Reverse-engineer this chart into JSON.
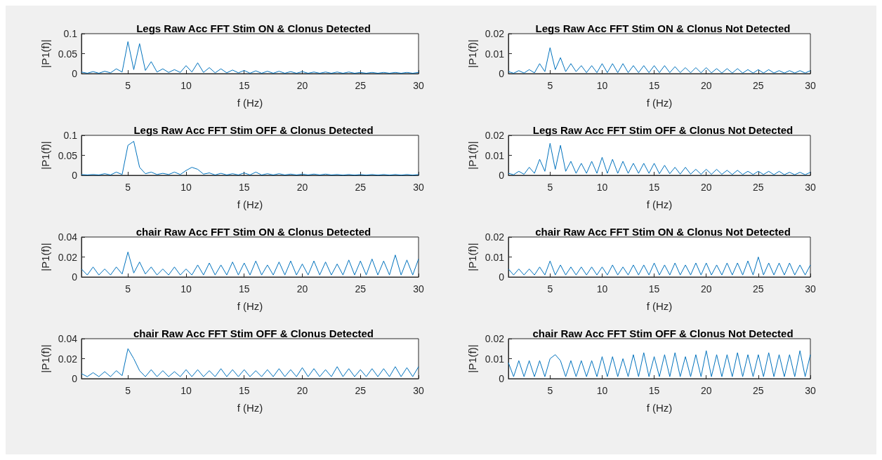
{
  "chart_data": [
    {
      "type": "line",
      "title": "Legs Raw Acc FFT Stim ON & Clonus Detected",
      "xlabel": "f (Hz)",
      "ylabel": "|P1(f)|",
      "color": "#0072bd",
      "marker": "none",
      "xlim": [
        1,
        30
      ],
      "xticks": [
        5,
        10,
        15,
        20,
        25,
        30
      ],
      "ylim": [
        0,
        0.1
      ],
      "yticks": [
        0,
        0.05,
        0.1
      ],
      "x": [
        1,
        1.5,
        2,
        2.5,
        3,
        3.5,
        4,
        4.5,
        5,
        5.5,
        6,
        6.5,
        7,
        7.5,
        8,
        8.5,
        9,
        9.5,
        10,
        10.5,
        11,
        11.5,
        12,
        12.5,
        13,
        13.5,
        14,
        14.5,
        15,
        15.5,
        16,
        16.5,
        17,
        17.5,
        18,
        18.5,
        19,
        19.5,
        20,
        20.5,
        21,
        21.5,
        22,
        22.5,
        23,
        23.5,
        24,
        24.5,
        25,
        25.5,
        26,
        26.5,
        27,
        27.5,
        28,
        28.5,
        29,
        29.5,
        30
      ],
      "values": [
        0.004,
        0.001,
        0.005,
        0.001,
        0.006,
        0.002,
        0.012,
        0.004,
        0.08,
        0.01,
        0.075,
        0.008,
        0.03,
        0.004,
        0.012,
        0.003,
        0.01,
        0.003,
        0.02,
        0.004,
        0.027,
        0.003,
        0.015,
        0.002,
        0.012,
        0.002,
        0.009,
        0.002,
        0.008,
        0.001,
        0.007,
        0.001,
        0.006,
        0.001,
        0.006,
        0.001,
        0.005,
        0.001,
        0.005,
        0.001,
        0.004,
        0.001,
        0.004,
        0.001,
        0.004,
        0.001,
        0.004,
        0.001,
        0.003,
        0.001,
        0.003,
        0.001,
        0.003,
        0.001,
        0.003,
        0.001,
        0.003,
        0.001,
        0.003
      ]
    },
    {
      "type": "line",
      "title": "Legs Raw Acc FFT Stim ON & Clonus Not Detected",
      "xlabel": "f (Hz)",
      "ylabel": "|P1(f)|",
      "color": "#0072bd",
      "marker": "none",
      "xlim": [
        1,
        30
      ],
      "xticks": [
        5,
        10,
        15,
        20,
        25,
        30
      ],
      "ylim": [
        0,
        0.02
      ],
      "yticks": [
        0,
        0.01,
        0.02
      ],
      "x": [
        1,
        1.5,
        2,
        2.5,
        3,
        3.5,
        4,
        4.5,
        5,
        5.5,
        6,
        6.5,
        7,
        7.5,
        8,
        8.5,
        9,
        9.5,
        10,
        10.5,
        11,
        11.5,
        12,
        12.5,
        13,
        13.5,
        14,
        14.5,
        15,
        15.5,
        16,
        16.5,
        17,
        17.5,
        18,
        18.5,
        19,
        19.5,
        20,
        20.5,
        21,
        21.5,
        22,
        22.5,
        23,
        23.5,
        24,
        24.5,
        25,
        25.5,
        26,
        26.5,
        27,
        27.5,
        28,
        28.5,
        29,
        29.5,
        30
      ],
      "values": [
        0.001,
        0.0002,
        0.0015,
        0.0003,
        0.002,
        0.0004,
        0.005,
        0.001,
        0.013,
        0.002,
        0.008,
        0.001,
        0.005,
        0.001,
        0.004,
        0.0005,
        0.004,
        0.0005,
        0.005,
        0.0005,
        0.005,
        0.0005,
        0.005,
        0.0005,
        0.004,
        0.0005,
        0.004,
        0.0005,
        0.004,
        0.0005,
        0.004,
        0.0005,
        0.0035,
        0.0005,
        0.003,
        0.0004,
        0.003,
        0.0004,
        0.003,
        0.0004,
        0.0025,
        0.0003,
        0.0025,
        0.0003,
        0.0025,
        0.0003,
        0.002,
        0.0003,
        0.002,
        0.0003,
        0.002,
        0.0003,
        0.0015,
        0.0003,
        0.0015,
        0.0003,
        0.0015,
        0.0003,
        0.0015
      ]
    },
    {
      "type": "line",
      "title": "Legs Raw Acc FFT Stim OFF & Clonus Detected",
      "xlabel": "f (Hz)",
      "ylabel": "|P1(f)|",
      "color": "#0072bd",
      "marker": "none",
      "xlim": [
        1,
        30
      ],
      "xticks": [
        5,
        10,
        15,
        20,
        25,
        30
      ],
      "ylim": [
        0,
        0.1
      ],
      "yticks": [
        0,
        0.05,
        0.1
      ],
      "x": [
        1,
        1.5,
        2,
        2.5,
        3,
        3.5,
        4,
        4.5,
        5,
        5.5,
        6,
        6.5,
        7,
        7.5,
        8,
        8.5,
        9,
        9.5,
        10,
        10.5,
        11,
        11.5,
        12,
        12.5,
        13,
        13.5,
        14,
        14.5,
        15,
        15.5,
        16,
        16.5,
        17,
        17.5,
        18,
        18.5,
        19,
        19.5,
        20,
        20.5,
        21,
        21.5,
        22,
        22.5,
        23,
        23.5,
        24,
        24.5,
        25,
        25.5,
        26,
        26.5,
        27,
        27.5,
        28,
        28.5,
        29,
        29.5,
        30
      ],
      "values": [
        0.002,
        0.001,
        0.002,
        0.001,
        0.004,
        0.001,
        0.008,
        0.002,
        0.075,
        0.085,
        0.02,
        0.004,
        0.008,
        0.002,
        0.005,
        0.002,
        0.008,
        0.002,
        0.012,
        0.02,
        0.015,
        0.003,
        0.006,
        0.001,
        0.005,
        0.001,
        0.004,
        0.001,
        0.006,
        0.001,
        0.008,
        0.001,
        0.004,
        0.001,
        0.004,
        0.001,
        0.003,
        0.001,
        0.003,
        0.001,
        0.003,
        0.001,
        0.003,
        0.001,
        0.002,
        0.0005,
        0.002,
        0.0005,
        0.002,
        0.0005,
        0.002,
        0.0005,
        0.002,
        0.0005,
        0.002,
        0.0005,
        0.002,
        0.0005,
        0.002
      ]
    },
    {
      "type": "line",
      "title": "Legs Raw Acc FFT Stim OFF & Clonus Not Detected",
      "xlabel": "f (Hz)",
      "ylabel": "|P1(f)|",
      "color": "#0072bd",
      "marker": "none",
      "xlim": [
        1,
        30
      ],
      "xticks": [
        5,
        10,
        15,
        20,
        25,
        30
      ],
      "ylim": [
        0,
        0.02
      ],
      "yticks": [
        0,
        0.01,
        0.02
      ],
      "x": [
        1,
        1.5,
        2,
        2.5,
        3,
        3.5,
        4,
        4.5,
        5,
        5.5,
        6,
        6.5,
        7,
        7.5,
        8,
        8.5,
        9,
        9.5,
        10,
        10.5,
        11,
        11.5,
        12,
        12.5,
        13,
        13.5,
        14,
        14.5,
        15,
        15.5,
        16,
        16.5,
        17,
        17.5,
        18,
        18.5,
        19,
        19.5,
        20,
        20.5,
        21,
        21.5,
        22,
        22.5,
        23,
        23.5,
        24,
        24.5,
        25,
        25.5,
        26,
        26.5,
        27,
        27.5,
        28,
        28.5,
        29,
        29.5,
        30
      ],
      "values": [
        0.001,
        0.0003,
        0.002,
        0.0005,
        0.004,
        0.001,
        0.008,
        0.002,
        0.016,
        0.003,
        0.015,
        0.002,
        0.007,
        0.001,
        0.006,
        0.001,
        0.007,
        0.001,
        0.009,
        0.001,
        0.008,
        0.001,
        0.007,
        0.001,
        0.006,
        0.001,
        0.006,
        0.001,
        0.006,
        0.0008,
        0.005,
        0.0008,
        0.004,
        0.0006,
        0.004,
        0.0006,
        0.003,
        0.0005,
        0.003,
        0.0005,
        0.003,
        0.0005,
        0.0025,
        0.0004,
        0.0025,
        0.0004,
        0.002,
        0.0004,
        0.002,
        0.0004,
        0.002,
        0.0003,
        0.002,
        0.0003,
        0.0015,
        0.0003,
        0.0015,
        0.0003,
        0.0015
      ]
    },
    {
      "type": "line",
      "title": "chair Raw Acc FFT Stim ON & Clonus Detected",
      "xlabel": "f (Hz)",
      "ylabel": "|P1(f)|",
      "color": "#0072bd",
      "marker": "none",
      "xlim": [
        1,
        30
      ],
      "xticks": [
        5,
        10,
        15,
        20,
        25,
        30
      ],
      "ylim": [
        0,
        0.04
      ],
      "yticks": [
        0,
        0.02,
        0.04
      ],
      "x": [
        1,
        1.5,
        2,
        2.5,
        3,
        3.5,
        4,
        4.5,
        5,
        5.5,
        6,
        6.5,
        7,
        7.5,
        8,
        8.5,
        9,
        9.5,
        10,
        10.5,
        11,
        11.5,
        12,
        12.5,
        13,
        13.5,
        14,
        14.5,
        15,
        15.5,
        16,
        16.5,
        17,
        17.5,
        18,
        18.5,
        19,
        19.5,
        20,
        20.5,
        21,
        21.5,
        22,
        22.5,
        23,
        23.5,
        24,
        24.5,
        25,
        25.5,
        26,
        26.5,
        27,
        27.5,
        28,
        28.5,
        29,
        29.5,
        30
      ],
      "values": [
        0.008,
        0.002,
        0.01,
        0.002,
        0.008,
        0.002,
        0.01,
        0.003,
        0.025,
        0.004,
        0.015,
        0.003,
        0.01,
        0.002,
        0.008,
        0.002,
        0.01,
        0.002,
        0.008,
        0.002,
        0.012,
        0.002,
        0.014,
        0.002,
        0.012,
        0.002,
        0.015,
        0.002,
        0.014,
        0.002,
        0.016,
        0.002,
        0.012,
        0.002,
        0.015,
        0.002,
        0.016,
        0.002,
        0.013,
        0.002,
        0.016,
        0.002,
        0.015,
        0.002,
        0.013,
        0.002,
        0.017,
        0.002,
        0.016,
        0.002,
        0.018,
        0.002,
        0.016,
        0.002,
        0.022,
        0.002,
        0.017,
        0.002,
        0.018
      ]
    },
    {
      "type": "line",
      "title": "chair Raw Acc FFT Stim ON & Clonus Not Detected",
      "xlabel": "f (Hz)",
      "ylabel": "|P1(f)|",
      "color": "#0072bd",
      "marker": "none",
      "xlim": [
        1,
        30
      ],
      "xticks": [
        5,
        10,
        15,
        20,
        25,
        30
      ],
      "ylim": [
        0,
        0.02
      ],
      "yticks": [
        0,
        0.01,
        0.02
      ],
      "x": [
        1,
        1.5,
        2,
        2.5,
        3,
        3.5,
        4,
        4.5,
        5,
        5.5,
        6,
        6.5,
        7,
        7.5,
        8,
        8.5,
        9,
        9.5,
        10,
        10.5,
        11,
        11.5,
        12,
        12.5,
        13,
        13.5,
        14,
        14.5,
        15,
        15.5,
        16,
        16.5,
        17,
        17.5,
        18,
        18.5,
        19,
        19.5,
        20,
        20.5,
        21,
        21.5,
        22,
        22.5,
        23,
        23.5,
        24,
        24.5,
        25,
        25.5,
        26,
        26.5,
        27,
        27.5,
        28,
        28.5,
        29,
        29.5,
        30
      ],
      "values": [
        0.004,
        0.001,
        0.004,
        0.001,
        0.004,
        0.001,
        0.005,
        0.001,
        0.008,
        0.001,
        0.006,
        0.001,
        0.005,
        0.001,
        0.005,
        0.001,
        0.005,
        0.001,
        0.005,
        0.001,
        0.006,
        0.001,
        0.005,
        0.001,
        0.006,
        0.001,
        0.006,
        0.001,
        0.007,
        0.001,
        0.006,
        0.001,
        0.007,
        0.001,
        0.006,
        0.001,
        0.007,
        0.001,
        0.007,
        0.001,
        0.006,
        0.001,
        0.007,
        0.001,
        0.007,
        0.001,
        0.008,
        0.001,
        0.01,
        0.001,
        0.007,
        0.001,
        0.007,
        0.001,
        0.007,
        0.001,
        0.006,
        0.001,
        0.006
      ]
    },
    {
      "type": "line",
      "title": "chair Raw Acc FFT Stim OFF & Clonus Detected",
      "xlabel": "f (Hz)",
      "ylabel": "|P1(f)|",
      "color": "#0072bd",
      "marker": "none",
      "xlim": [
        1,
        30
      ],
      "xticks": [
        5,
        10,
        15,
        20,
        25,
        30
      ],
      "ylim": [
        0,
        0.04
      ],
      "yticks": [
        0,
        0.02,
        0.04
      ],
      "x": [
        1,
        1.5,
        2,
        2.5,
        3,
        3.5,
        4,
        4.5,
        5,
        5.5,
        6,
        6.5,
        7,
        7.5,
        8,
        8.5,
        9,
        9.5,
        10,
        10.5,
        11,
        11.5,
        12,
        12.5,
        13,
        13.5,
        14,
        14.5,
        15,
        15.5,
        16,
        16.5,
        17,
        17.5,
        18,
        18.5,
        19,
        19.5,
        20,
        20.5,
        21,
        21.5,
        22,
        22.5,
        23,
        23.5,
        24,
        24.5,
        25,
        25.5,
        26,
        26.5,
        27,
        27.5,
        28,
        28.5,
        29,
        29.5,
        30
      ],
      "values": [
        0.005,
        0.002,
        0.006,
        0.002,
        0.007,
        0.002,
        0.008,
        0.003,
        0.03,
        0.02,
        0.008,
        0.002,
        0.009,
        0.002,
        0.008,
        0.002,
        0.007,
        0.002,
        0.009,
        0.002,
        0.009,
        0.002,
        0.008,
        0.002,
        0.01,
        0.002,
        0.009,
        0.002,
        0.009,
        0.002,
        0.008,
        0.002,
        0.009,
        0.002,
        0.01,
        0.002,
        0.009,
        0.002,
        0.011,
        0.002,
        0.01,
        0.002,
        0.009,
        0.002,
        0.012,
        0.002,
        0.01,
        0.002,
        0.009,
        0.002,
        0.01,
        0.002,
        0.01,
        0.002,
        0.012,
        0.002,
        0.011,
        0.002,
        0.012
      ]
    },
    {
      "type": "line",
      "title": "chair Raw Acc FFT Stim OFF & Clonus Not Detected",
      "xlabel": "f (Hz)",
      "ylabel": "|P1(f)|",
      "color": "#0072bd",
      "marker": "none",
      "xlim": [
        1,
        30
      ],
      "xticks": [
        5,
        10,
        15,
        20,
        25,
        30
      ],
      "ylim": [
        0,
        0.02
      ],
      "yticks": [
        0,
        0.01,
        0.02
      ],
      "x": [
        1,
        1.5,
        2,
        2.5,
        3,
        3.5,
        4,
        4.5,
        5,
        5.5,
        6,
        6.5,
        7,
        7.5,
        8,
        8.5,
        9,
        9.5,
        10,
        10.5,
        11,
        11.5,
        12,
        12.5,
        13,
        13.5,
        14,
        14.5,
        15,
        15.5,
        16,
        16.5,
        17,
        17.5,
        18,
        18.5,
        19,
        19.5,
        20,
        20.5,
        21,
        21.5,
        22,
        22.5,
        23,
        23.5,
        24,
        24.5,
        25,
        25.5,
        26,
        26.5,
        27,
        27.5,
        28,
        28.5,
        29,
        29.5,
        30
      ],
      "values": [
        0.008,
        0.001,
        0.009,
        0.001,
        0.009,
        0.001,
        0.009,
        0.001,
        0.01,
        0.012,
        0.009,
        0.001,
        0.009,
        0.001,
        0.009,
        0.001,
        0.009,
        0.001,
        0.011,
        0.001,
        0.011,
        0.001,
        0.01,
        0.001,
        0.012,
        0.001,
        0.013,
        0.001,
        0.011,
        0.001,
        0.012,
        0.001,
        0.013,
        0.001,
        0.011,
        0.001,
        0.012,
        0.001,
        0.014,
        0.001,
        0.012,
        0.001,
        0.012,
        0.001,
        0.013,
        0.001,
        0.012,
        0.001,
        0.012,
        0.001,
        0.013,
        0.001,
        0.012,
        0.001,
        0.012,
        0.001,
        0.014,
        0.001,
        0.012
      ]
    }
  ]
}
